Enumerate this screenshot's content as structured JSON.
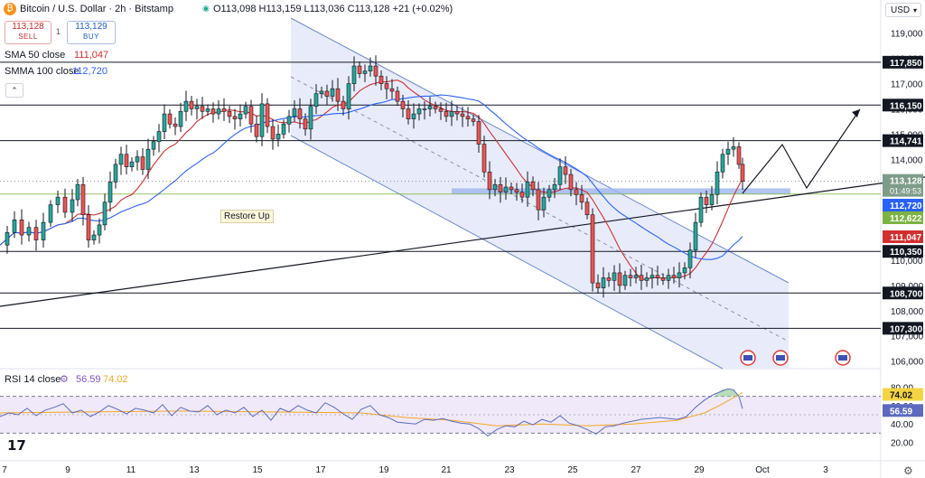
{
  "header": {
    "symbol": "Bitcoin / U.S. Dollar · 2h · Bitstamp",
    "ohlc": "O113,098 H113,159 L113,036 C113,128 +21 (+0.02%)",
    "sell_price": "113,128",
    "sell_label": "SELL",
    "spread": "1",
    "buy_price": "113,129",
    "buy_label": "BUY",
    "sma50_label": "SMA 50 close",
    "sma50_value": "111,047",
    "smma100_label": "SMMA 100 close",
    "smma100_value": "112,720",
    "currency": "USD"
  },
  "annotation": "Restore Up",
  "chart_data": {
    "type": "candlestick",
    "price_axis": {
      "min": 105700,
      "max": 119600,
      "ticks": [
        106000,
        107000,
        108000,
        109000,
        110000,
        111000,
        112000,
        113000,
        114000,
        115000,
        116000,
        117000,
        118000,
        119000
      ]
    },
    "date_axis": {
      "labels": [
        "7",
        "9",
        "11",
        "13",
        "15",
        "17",
        "19",
        "21",
        "23",
        "25",
        "27",
        "29",
        "Oct",
        "3"
      ]
    },
    "horizontal_levels": [
      117850,
      116150,
      114741,
      110350,
      108700,
      107300
    ],
    "level_labels": [
      "117,850",
      "116,150",
      "114,741",
      "110,350",
      "108,700",
      "107,300"
    ],
    "current_price": {
      "label": "113,128",
      "countdown": "01:49:53"
    },
    "sma50_label": "111,047",
    "smma100_label": "112,720",
    "other_label": "112,622",
    "close_path": [
      [
        0,
        110600
      ],
      [
        8,
        111100
      ],
      [
        16,
        111600
      ],
      [
        24,
        111000
      ],
      [
        32,
        111300
      ],
      [
        40,
        110800
      ],
      [
        48,
        111500
      ],
      [
        56,
        112200
      ],
      [
        64,
        112500
      ],
      [
        72,
        111900
      ],
      [
        80,
        112400
      ],
      [
        86,
        113000
      ],
      [
        92,
        111800
      ],
      [
        98,
        110800
      ],
      [
        104,
        111000
      ],
      [
        110,
        111400
      ],
      [
        116,
        112300
      ],
      [
        122,
        113100
      ],
      [
        128,
        113800
      ],
      [
        134,
        114200
      ],
      [
        140,
        113700
      ],
      [
        146,
        113900
      ],
      [
        152,
        114100
      ],
      [
        158,
        113600
      ],
      [
        164,
        114400
      ],
      [
        170,
        114700
      ],
      [
        176,
        115100
      ],
      [
        182,
        115800
      ],
      [
        188,
        115400
      ],
      [
        194,
        115300
      ],
      [
        200,
        115900
      ],
      [
        206,
        116300
      ],
      [
        212,
        116000
      ],
      [
        218,
        116100
      ],
      [
        224,
        115900
      ],
      [
        230,
        116000
      ],
      [
        236,
        115800
      ],
      [
        242,
        116000
      ],
      [
        248,
        115900
      ],
      [
        254,
        115700
      ],
      [
        260,
        115600
      ],
      [
        266,
        115800
      ],
      [
        272,
        116100
      ],
      [
        278,
        115400
      ],
      [
        284,
        114900
      ],
      [
        290,
        116200
      ],
      [
        296,
        115300
      ],
      [
        302,
        114800
      ],
      [
        308,
        115000
      ],
      [
        314,
        115400
      ],
      [
        320,
        115700
      ],
      [
        326,
        116000
      ],
      [
        332,
        115600
      ],
      [
        338,
        115200
      ],
      [
        344,
        116100
      ],
      [
        350,
        116600
      ],
      [
        356,
        116700
      ],
      [
        362,
        116500
      ],
      [
        368,
        116800
      ],
      [
        374,
        116300
      ],
      [
        380,
        116000
      ],
      [
        386,
        117000
      ],
      [
        392,
        117700
      ],
      [
        398,
        117400
      ],
      [
        404,
        117500
      ],
      [
        410,
        117700
      ],
      [
        416,
        117300
      ],
      [
        422,
        117000
      ],
      [
        428,
        116800
      ],
      [
        434,
        116700
      ],
      [
        440,
        116300
      ],
      [
        446,
        116000
      ],
      [
        452,
        115600
      ],
      [
        458,
        115800
      ],
      [
        464,
        116000
      ],
      [
        470,
        116000
      ],
      [
        476,
        116100
      ],
      [
        482,
        116000
      ],
      [
        488,
        115900
      ],
      [
        494,
        115700
      ],
      [
        500,
        115900
      ],
      [
        506,
        115800
      ],
      [
        512,
        115700
      ],
      [
        518,
        115600
      ],
      [
        524,
        115500
      ],
      [
        530,
        114600
      ],
      [
        536,
        113500
      ],
      [
        542,
        112800
      ],
      [
        548,
        113000
      ],
      [
        554,
        112700
      ],
      [
        560,
        112900
      ],
      [
        566,
        112800
      ],
      [
        572,
        112700
      ],
      [
        578,
        112500
      ],
      [
        584,
        113100
      ],
      [
        590,
        112800
      ],
      [
        596,
        112000
      ],
      [
        602,
        112500
      ],
      [
        608,
        112800
      ],
      [
        614,
        113000
      ],
      [
        620,
        113700
      ],
      [
        626,
        113400
      ],
      [
        632,
        112800
      ],
      [
        638,
        112600
      ],
      [
        644,
        112300
      ],
      [
        650,
        111800
      ],
      [
        656,
        109100
      ],
      [
        662,
        108900
      ],
      [
        668,
        109300
      ],
      [
        674,
        109200
      ],
      [
        680,
        109500
      ],
      [
        686,
        109000
      ],
      [
        692,
        109400
      ],
      [
        698,
        109300
      ],
      [
        704,
        109400
      ],
      [
        710,
        109200
      ],
      [
        716,
        109300
      ],
      [
        722,
        109400
      ],
      [
        728,
        109300
      ],
      [
        734,
        109200
      ],
      [
        740,
        109400
      ],
      [
        746,
        109300
      ],
      [
        752,
        109500
      ],
      [
        758,
        109700
      ],
      [
        764,
        110400
      ],
      [
        770,
        111500
      ],
      [
        776,
        112500
      ],
      [
        782,
        112200
      ],
      [
        788,
        112600
      ],
      [
        794,
        113500
      ],
      [
        800,
        114200
      ],
      [
        806,
        114400
      ],
      [
        812,
        114500
      ],
      [
        818,
        113800
      ],
      [
        822,
        113128
      ]
    ],
    "rsi": {
      "label": "RSI 14 close",
      "value": "56.59",
      "ma_value": "74.02",
      "axis_ticks": [
        80,
        60,
        40,
        20
      ],
      "levels": [
        70,
        30
      ],
      "series": [
        [
          0,
          48
        ],
        [
          10,
          52
        ],
        [
          20,
          50
        ],
        [
          30,
          57
        ],
        [
          40,
          49
        ],
        [
          50,
          55
        ],
        [
          60,
          58
        ],
        [
          70,
          62
        ],
        [
          80,
          52
        ],
        [
          90,
          55
        ],
        [
          100,
          48
        ],
        [
          110,
          53
        ],
        [
          120,
          60
        ],
        [
          130,
          56
        ],
        [
          140,
          51
        ],
        [
          150,
          57
        ],
        [
          160,
          55
        ],
        [
          170,
          52
        ],
        [
          180,
          61
        ],
        [
          190,
          49
        ],
        [
          200,
          58
        ],
        [
          210,
          54
        ],
        [
          220,
          53
        ],
        [
          230,
          60
        ],
        [
          240,
          50
        ],
        [
          250,
          55
        ],
        [
          260,
          52
        ],
        [
          270,
          58
        ],
        [
          280,
          48
        ],
        [
          290,
          55
        ],
        [
          300,
          44
        ],
        [
          310,
          57
        ],
        [
          320,
          53
        ],
        [
          330,
          60
        ],
        [
          340,
          55
        ],
        [
          350,
          52
        ],
        [
          360,
          63
        ],
        [
          370,
          58
        ],
        [
          380,
          51
        ],
        [
          390,
          45
        ],
        [
          400,
          56
        ],
        [
          410,
          60
        ],
        [
          420,
          50
        ],
        [
          430,
          47
        ],
        [
          440,
          42
        ],
        [
          450,
          41
        ],
        [
          460,
          40
        ],
        [
          470,
          45
        ],
        [
          480,
          44
        ],
        [
          490,
          46
        ],
        [
          500,
          43
        ],
        [
          510,
          41
        ],
        [
          520,
          40
        ],
        [
          530,
          35
        ],
        [
          540,
          27
        ],
        [
          550,
          34
        ],
        [
          560,
          38
        ],
        [
          570,
          37
        ],
        [
          580,
          43
        ],
        [
          590,
          39
        ],
        [
          600,
          45
        ],
        [
          610,
          42
        ],
        [
          620,
          49
        ],
        [
          630,
          41
        ],
        [
          640,
          38
        ],
        [
          650,
          34
        ],
        [
          660,
          29
        ],
        [
          670,
          37
        ],
        [
          680,
          38
        ],
        [
          690,
          41
        ],
        [
          700,
          43
        ],
        [
          710,
          45
        ],
        [
          720,
          46
        ],
        [
          730,
          47
        ],
        [
          740,
          46
        ],
        [
          750,
          45
        ],
        [
          760,
          48
        ],
        [
          770,
          58
        ],
        [
          780,
          66
        ],
        [
          790,
          72
        ],
        [
          800,
          76
        ],
        [
          806,
          78
        ],
        [
          812,
          77
        ],
        [
          818,
          70
        ],
        [
          822,
          56.59
        ]
      ],
      "ma_series": [
        [
          0,
          52
        ],
        [
          100,
          53
        ],
        [
          200,
          54
        ],
        [
          300,
          53
        ],
        [
          400,
          52
        ],
        [
          450,
          47
        ],
        [
          500,
          44
        ],
        [
          550,
          38
        ],
        [
          600,
          40
        ],
        [
          650,
          38
        ],
        [
          700,
          40
        ],
        [
          750,
          44
        ],
        [
          780,
          52
        ],
        [
          800,
          62
        ],
        [
          822,
          74.02
        ]
      ]
    }
  }
}
